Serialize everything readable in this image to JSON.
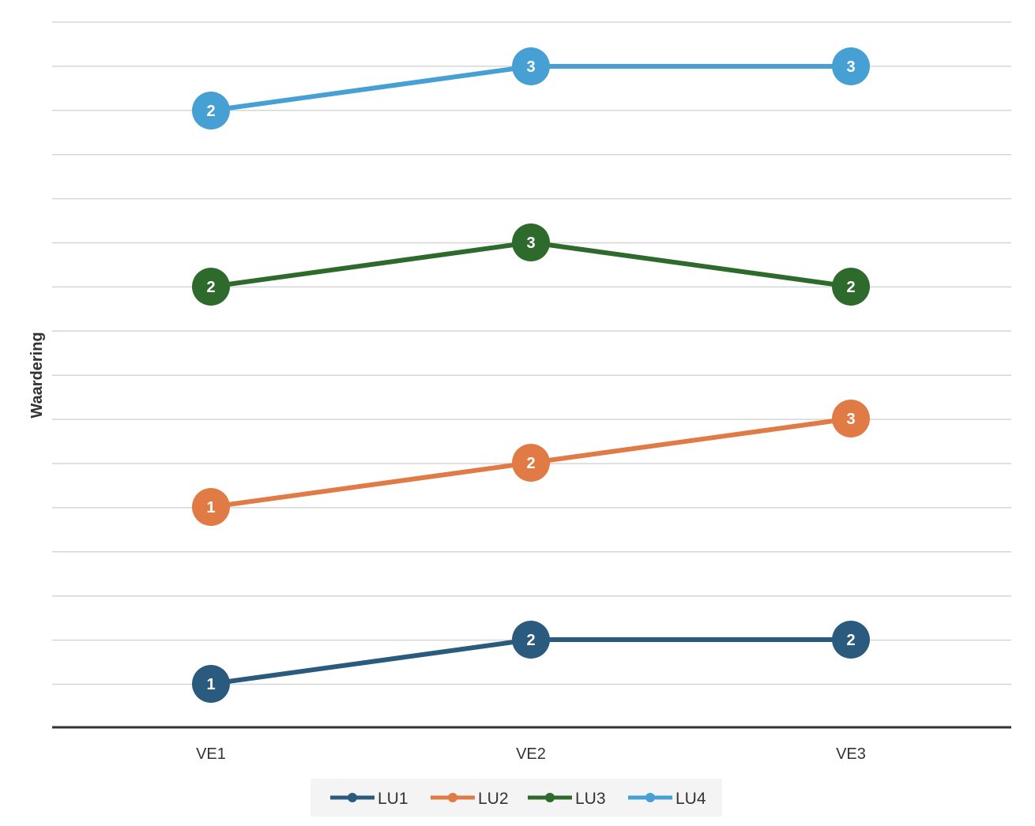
{
  "chart_data": {
    "type": "line",
    "categories": [
      "VE1",
      "VE2",
      "VE3"
    ],
    "ylabel": "Waardering",
    "xlabel": "",
    "title": "",
    "grid": true,
    "legend_position": "bottom",
    "series": [
      {
        "name": "LU1",
        "values": [
          1,
          2,
          2
        ],
        "color": "#2b5a7f"
      },
      {
        "name": "LU2",
        "values": [
          1,
          2,
          3
        ],
        "color": "#e07b45"
      },
      {
        "name": "LU3",
        "values": [
          2,
          3,
          2
        ],
        "color": "#2f6a2d"
      },
      {
        "name": "LU4",
        "values": [
          2,
          3,
          3
        ],
        "color": "#46a0d4"
      }
    ]
  }
}
